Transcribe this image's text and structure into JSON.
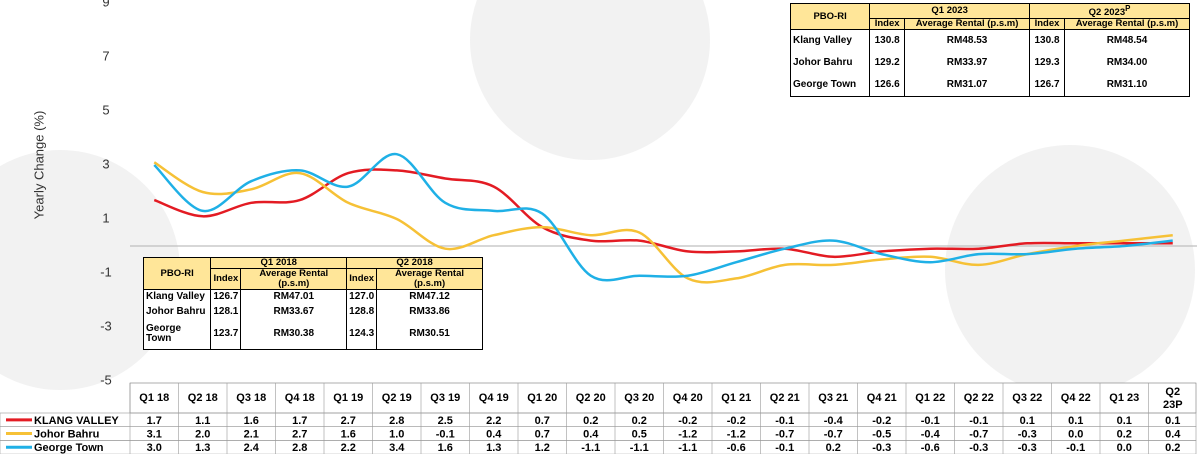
{
  "chart_data": {
    "type": "line",
    "y_label": "Yearly Change (%)",
    "categories": [
      "Q1 18",
      "Q2 18",
      "Q3 18",
      "Q4 18",
      "Q1 19",
      "Q2 19",
      "Q3 19",
      "Q4 19",
      "Q1 20",
      "Q2 20",
      "Q3 20",
      "Q4 20",
      "Q1 21",
      "Q2 21",
      "Q3 21",
      "Q4 21",
      "Q1 22",
      "Q2 22",
      "Q3 22",
      "Q4 22",
      "Q1 23",
      "Q2 23P"
    ],
    "series": [
      {
        "name": "KLANG VALLEY",
        "color": "#e31b23",
        "values": [
          1.7,
          1.1,
          1.6,
          1.7,
          2.7,
          2.8,
          2.5,
          2.2,
          0.7,
          0.2,
          0.2,
          -0.2,
          -0.2,
          -0.1,
          -0.4,
          -0.2,
          -0.1,
          -0.1,
          0.1,
          0.1,
          0.1,
          0.1
        ],
        "value_labels": [
          "1.7",
          "1.1",
          "1.6",
          "1.7",
          "2.7",
          "2.8",
          "2.5",
          "2.2",
          "0.7",
          "0.2",
          "0.2",
          "-0.2",
          "-0.2",
          "-0.1",
          "-0.4",
          "-0.2",
          "-0.1",
          "-0.1",
          "0.1",
          "0.1",
          "0.1",
          "0.1"
        ]
      },
      {
        "name": "Johor Bahru",
        "color": "#f6c136",
        "values": [
          3.1,
          2.0,
          2.1,
          2.7,
          1.6,
          1.0,
          -0.1,
          0.4,
          0.7,
          0.4,
          0.5,
          -1.2,
          -1.2,
          -0.7,
          -0.7,
          -0.5,
          -0.4,
          -0.7,
          -0.3,
          0.0,
          0.2,
          0.4
        ],
        "value_labels": [
          "3.1",
          "2.0",
          "2.1",
          "2.7",
          "1.6",
          "1.0",
          "-0.1",
          "0.4",
          "0.7",
          "0.4",
          "0.5",
          "-1.2",
          "-1.2",
          "-0.7",
          "-0.7",
          "-0.5",
          "-0.4",
          "-0.7",
          "-0.3",
          "0.0",
          "0.2",
          "0.4"
        ]
      },
      {
        "name": "George Town",
        "color": "#1fb0e6",
        "values": [
          3.0,
          1.3,
          2.4,
          2.8,
          2.2,
          3.4,
          1.6,
          1.3,
          1.2,
          -1.1,
          -1.1,
          -1.1,
          -0.6,
          -0.1,
          0.2,
          -0.3,
          -0.6,
          -0.3,
          -0.3,
          -0.1,
          0.0,
          0.2
        ],
        "value_labels": [
          "3.0",
          "1.3",
          "2.4",
          "2.8",
          "2.2",
          "3.4",
          "1.6",
          "1.3",
          "1.2",
          "-1.1",
          "-1.1",
          "-1.1",
          "-0.6",
          "-0.1",
          "0.2",
          "-0.3",
          "-0.6",
          "-0.3",
          "-0.3",
          "-0.1",
          "0.0",
          "0.2"
        ]
      }
    ],
    "ylim": [
      -5,
      9
    ],
    "yticks": [
      9,
      7,
      5,
      3,
      1,
      -1,
      -3,
      -5
    ],
    "zero_line": true,
    "smooth": true
  },
  "tables": [
    {
      "corner": "PBO-RI",
      "periods": [
        {
          "label": "Q1 2023"
        },
        {
          "label": "Q2 2023",
          "sup": "P"
        }
      ],
      "subheaders": [
        "Index",
        "Average Rental (p.s.m)"
      ],
      "rows": [
        [
          "Klang Valley",
          "130.8",
          "RM48.53",
          "130.8",
          "RM48.54"
        ],
        [
          "Johor Bahru",
          "129.2",
          "RM33.97",
          "129.3",
          "RM34.00"
        ],
        [
          "George Town",
          "126.6",
          "RM31.07",
          "126.7",
          "RM31.10"
        ]
      ]
    },
    {
      "corner": "PBO-RI",
      "periods": [
        {
          "label": "Q1 2018"
        },
        {
          "label": "Q2 2018"
        }
      ],
      "subheaders": [
        "Index",
        "Average Rental (p.s.m)"
      ],
      "rows": [
        [
          "Klang Valley",
          "126.7",
          "RM47.01",
          "127.0",
          "RM47.12"
        ],
        [
          "Johor Bahru",
          "128.1",
          "RM33.67",
          "128.8",
          "RM33.86"
        ],
        [
          "George Town",
          "123.7",
          "RM30.38",
          "124.3",
          "RM30.51"
        ]
      ]
    }
  ]
}
